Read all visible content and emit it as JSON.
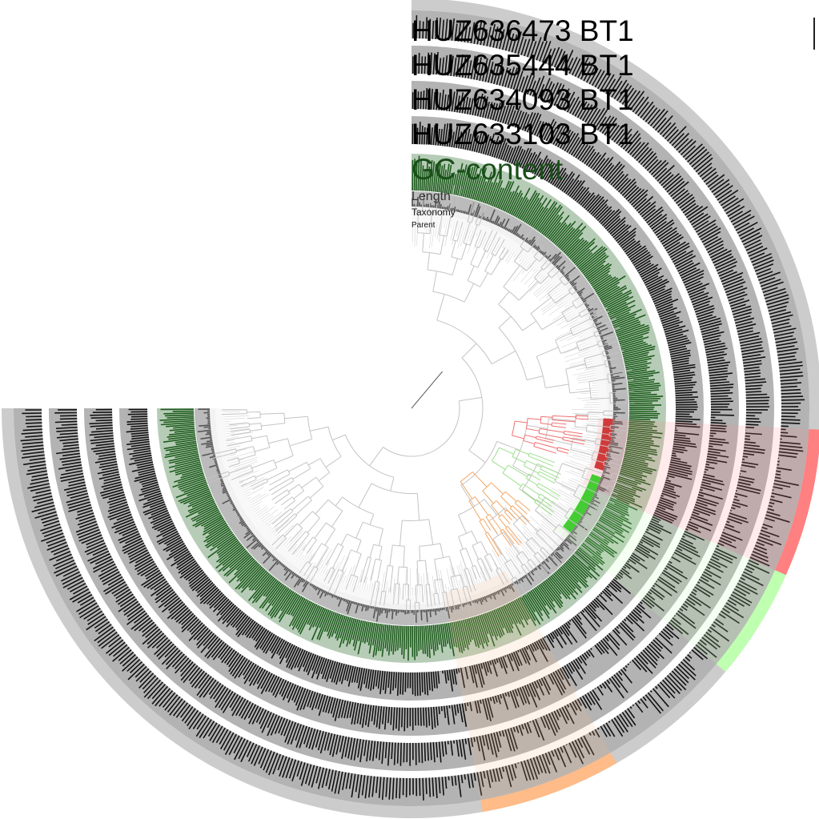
{
  "chart_data": {
    "type": "radial-bar",
    "layers": [
      {
        "name": "HUZ636473 BT1",
        "kind": "coverage",
        "color": "#111111",
        "background": "#b3b3b3"
      },
      {
        "name": "HUZ635444 BT1",
        "kind": "coverage",
        "color": "#111111",
        "background": "#b3b3b3"
      },
      {
        "name": "HUZ634093 BT1",
        "kind": "coverage",
        "color": "#111111",
        "background": "#b3b3b3"
      },
      {
        "name": "HUZ633103 BT1",
        "kind": "coverage",
        "color": "#111111",
        "background": "#b3b3b3"
      },
      {
        "name": "GC-content",
        "kind": "gc",
        "color": "#1e5c1e",
        "background": "#b6ccb6"
      },
      {
        "name": "Length",
        "kind": "length",
        "color": "#555555",
        "background": "#bbbbbb"
      },
      {
        "name": "Taxonomy",
        "kind": "taxonomy",
        "color": "#f2f2f2",
        "background": "#f2f2f2"
      },
      {
        "name": "Parent",
        "kind": "parent",
        "color": "#f8f8f8",
        "background": "#f8f8f8"
      }
    ],
    "outer_band_color": "#cccccc",
    "bins": [
      {
        "name": "red bin",
        "color": "#ff8080",
        "dark": "#d13a3a",
        "tree": "#f07070"
      },
      {
        "name": "green bin",
        "color": "#bfffb0",
        "dark": "#44cc33",
        "tree": "#9ee08e"
      },
      {
        "name": "orange bin",
        "color": "#ffbb88",
        "dark": "#f3a866",
        "tree": "#f3a866"
      }
    ]
  },
  "labels": {
    "l1": "HUZ636473 BT1",
    "l2": "HUZ635444 BT1",
    "l3": "HUZ634093 BT1",
    "l4": "HUZ633103 BT1",
    "gc": "GC-content",
    "len": "Length",
    "tax": "Taxonomy",
    "par": "Parent"
  }
}
